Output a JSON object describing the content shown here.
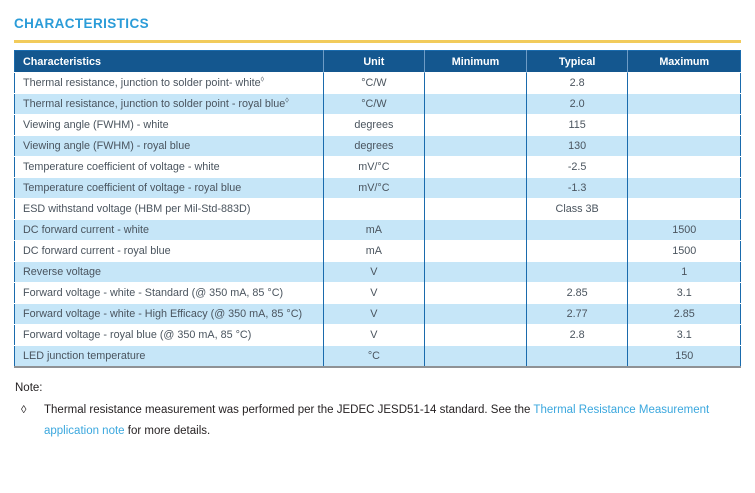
{
  "page": {
    "title": "CHARACTERISTICS"
  },
  "colors": {
    "title_blue": "#2b9cd8",
    "gold_rule": "#f2cb5b",
    "header_blue": "#14578f",
    "alt_row_blue": "#c6e6f8",
    "grid_blue": "#1a6bad",
    "link_blue": "#3aa7de"
  },
  "table": {
    "headers": [
      "Characteristics",
      "Unit",
      "Minimum",
      "Typical",
      "Maximum"
    ],
    "rows": [
      {
        "characteristic": "Thermal resistance, junction to solder point- white",
        "sup": "◊",
        "unit": "°C/W",
        "minimum": "",
        "typical": "2.8",
        "maximum": ""
      },
      {
        "characteristic": "Thermal resistance, junction to solder point - royal blue",
        "sup": "◊",
        "unit": "°C/W",
        "minimum": "",
        "typical": "2.0",
        "maximum": ""
      },
      {
        "characteristic": "Viewing angle (FWHM) - white",
        "sup": "",
        "unit": "degrees",
        "minimum": "",
        "typical": "115",
        "maximum": ""
      },
      {
        "characteristic": "Viewing angle (FWHM) - royal blue",
        "sup": "",
        "unit": "degrees",
        "minimum": "",
        "typical": "130",
        "maximum": ""
      },
      {
        "characteristic": "Temperature coefficient of voltage - white",
        "sup": "",
        "unit": "mV/°C",
        "minimum": "",
        "typical": "-2.5",
        "maximum": ""
      },
      {
        "characteristic": "Temperature coefficient of voltage - royal blue",
        "sup": "",
        "unit": "mV/°C",
        "minimum": "",
        "typical": "-1.3",
        "maximum": ""
      },
      {
        "characteristic": "ESD withstand voltage (HBM per Mil-Std-883D)",
        "sup": "",
        "unit": "",
        "minimum": "",
        "typical": "Class 3B",
        "maximum": ""
      },
      {
        "characteristic": "DC forward current - white",
        "sup": "",
        "unit": "mA",
        "minimum": "",
        "typical": "",
        "maximum": "1500"
      },
      {
        "characteristic": "DC forward current - royal blue",
        "sup": "",
        "unit": "mA",
        "minimum": "",
        "typical": "",
        "maximum": "1500"
      },
      {
        "characteristic": "Reverse voltage",
        "sup": "",
        "unit": "V",
        "minimum": "",
        "typical": "",
        "maximum": "1"
      },
      {
        "characteristic": "Forward voltage - white - Standard (@ 350 mA, 85 °C)",
        "sup": "",
        "unit": "V",
        "minimum": "",
        "typical": "2.85",
        "maximum": "3.1"
      },
      {
        "characteristic": "Forward voltage - white - High Efficacy (@ 350 mA, 85 °C)",
        "sup": "",
        "unit": "V",
        "minimum": "",
        "typical": "2.77",
        "maximum": "2.85"
      },
      {
        "characteristic": "Forward voltage - royal blue (@ 350 mA, 85 °C)",
        "sup": "",
        "unit": "V",
        "minimum": "",
        "typical": "2.8",
        "maximum": "3.1"
      },
      {
        "characteristic": "LED junction temperature",
        "sup": "",
        "unit": "°C",
        "minimum": "",
        "typical": "",
        "maximum": "150"
      }
    ]
  },
  "note": {
    "label": "Note:",
    "bullet": "◊",
    "text_before_link": "Thermal resistance measurement was performed per the JEDEC JESD51-14 standard. See the ",
    "link_text": "Thermal Resistance Measurement application note",
    "text_after_link": " for more details."
  }
}
